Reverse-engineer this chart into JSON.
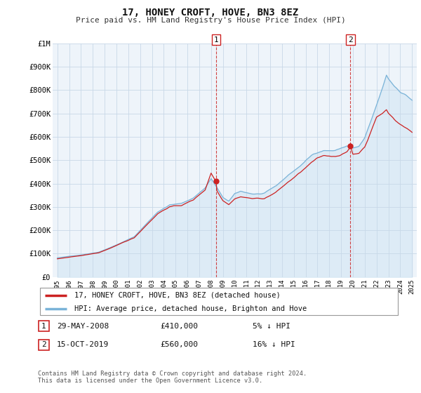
{
  "title": "17, HONEY CROFT, HOVE, BN3 8EZ",
  "subtitle": "Price paid vs. HM Land Registry's House Price Index (HPI)",
  "hpi_color": "#7ab3d8",
  "hpi_fill_color": "#d6e8f5",
  "price_color": "#cc2222",
  "dashed_color": "#cc2222",
  "background_color": "#ffffff",
  "chart_bg_color": "#eef4fa",
  "grid_color": "#c8d8e8",
  "ylim": [
    0,
    1000000
  ],
  "yticks": [
    0,
    100000,
    200000,
    300000,
    400000,
    500000,
    600000,
    700000,
    800000,
    900000,
    1000000
  ],
  "ytick_labels": [
    "£0",
    "£100K",
    "£200K",
    "£300K",
    "£400K",
    "£500K",
    "£600K",
    "£700K",
    "£800K",
    "£900K",
    "£1M"
  ],
  "xlim_start": 1994.6,
  "xlim_end": 2025.4,
  "xtick_years": [
    1995,
    1996,
    1997,
    1998,
    1999,
    2000,
    2001,
    2002,
    2003,
    2004,
    2005,
    2006,
    2007,
    2008,
    2009,
    2010,
    2011,
    2012,
    2013,
    2014,
    2015,
    2016,
    2017,
    2018,
    2019,
    2020,
    2021,
    2022,
    2023,
    2024,
    2025
  ],
  "sale1_x": 2008.41,
  "sale1_y": 410000,
  "sale2_x": 2019.79,
  "sale2_y": 560000,
  "legend_entry1": "17, HONEY CROFT, HOVE, BN3 8EZ (detached house)",
  "legend_entry2": "HPI: Average price, detached house, Brighton and Hove",
  "annotation1_label": "1",
  "annotation2_label": "2",
  "footnote": "Contains HM Land Registry data © Crown copyright and database right 2024.\nThis data is licensed under the Open Government Licence v3.0."
}
